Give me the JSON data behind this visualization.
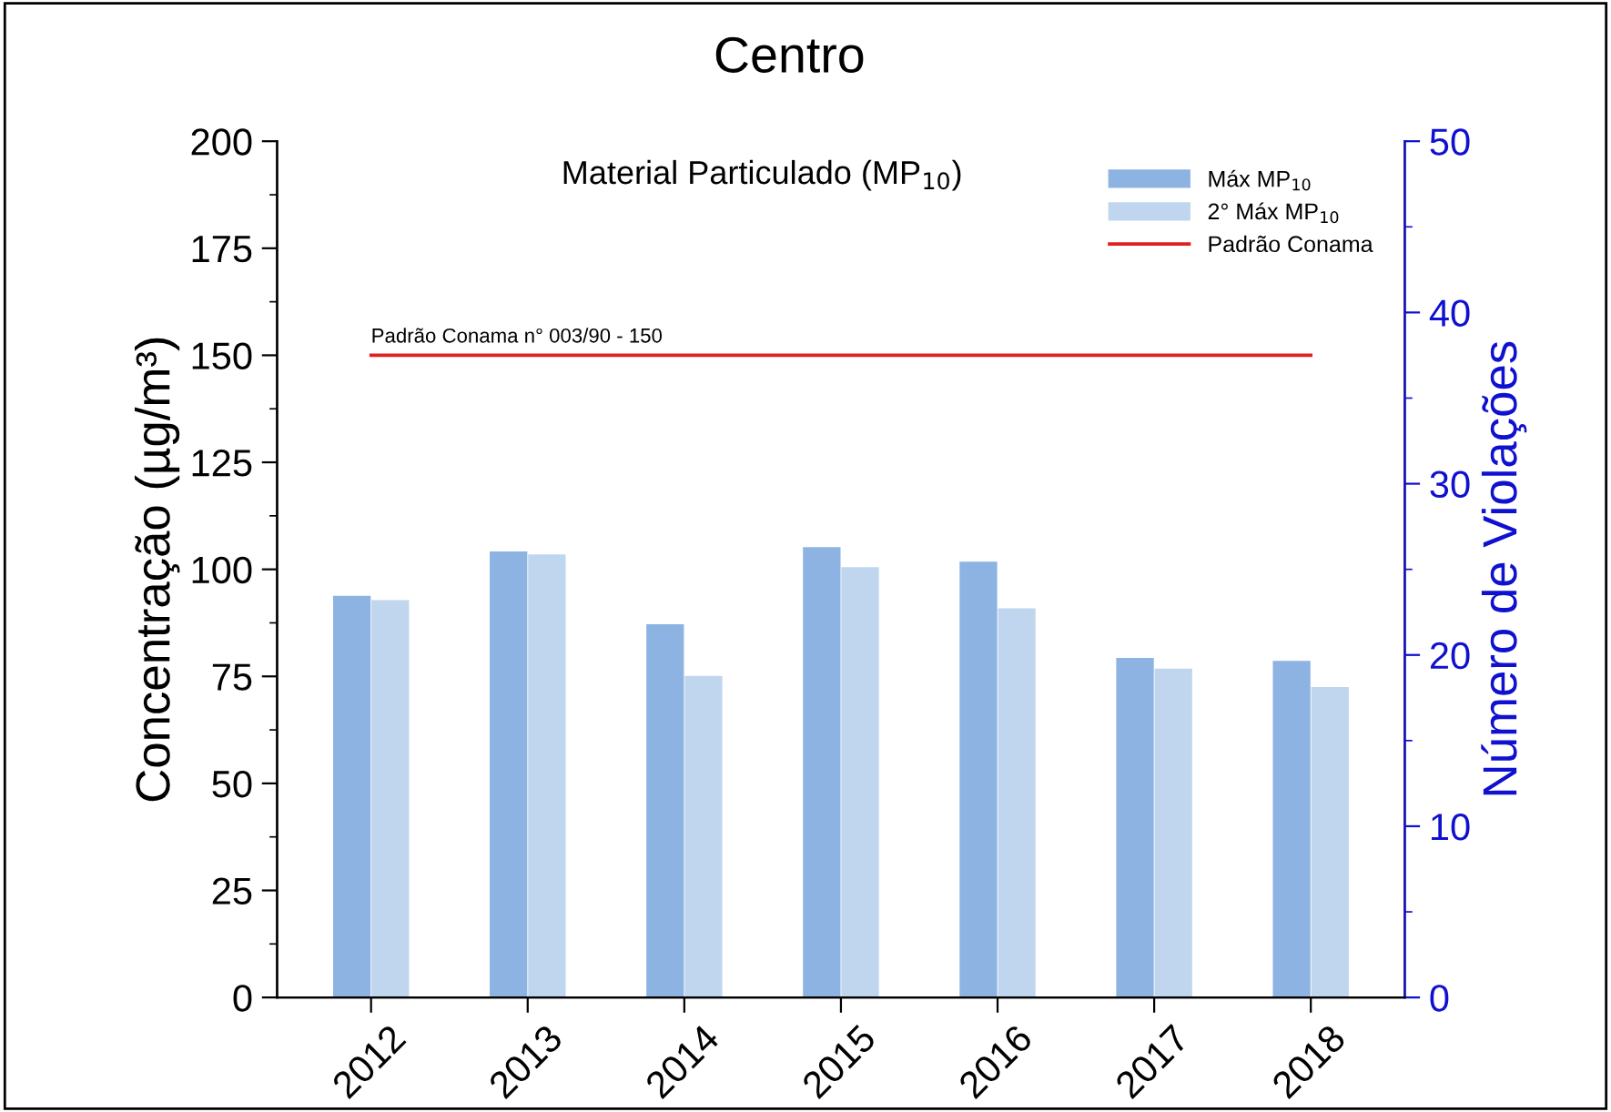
{
  "chart_data": {
    "type": "bar",
    "title": "Centro",
    "subtitle": "Material Particulado (MP$_{10}$)",
    "ylabel": "Concentração (µg/m³)",
    "y2label": "Número de Violações",
    "categories": [
      "2012",
      "2013",
      "2014",
      "2015",
      "2016",
      "2017",
      "2018"
    ],
    "series": [
      {
        "name": "Máx MP$_{10}$",
        "color": "#8db3e2",
        "values": [
          93.8,
          104.2,
          87.2,
          105.2,
          101.8,
          79.3,
          78.6
        ]
      },
      {
        "name": "2° Máx MP$_{10}$",
        "color": "#c0d6ee",
        "values": [
          92.8,
          103.5,
          75.1,
          100.5,
          90.9,
          76.8,
          72.5
        ]
      }
    ],
    "ylim": [
      0,
      200
    ],
    "yticks": [
      0,
      25,
      50,
      75,
      100,
      125,
      150,
      175,
      200
    ],
    "y2lim": [
      0,
      50
    ],
    "y2ticks": [
      0,
      10,
      20,
      30,
      40,
      50
    ],
    "ref_lines": [
      {
        "axis": "y",
        "value": 150,
        "label": "Padrão Conama",
        "color": "#e02020"
      }
    ],
    "annotations": [
      {
        "text": "Padrão Conama n° 003/90 - 150",
        "x": "2012",
        "y": 150
      }
    ],
    "legend": "top right",
    "grid": false
  }
}
